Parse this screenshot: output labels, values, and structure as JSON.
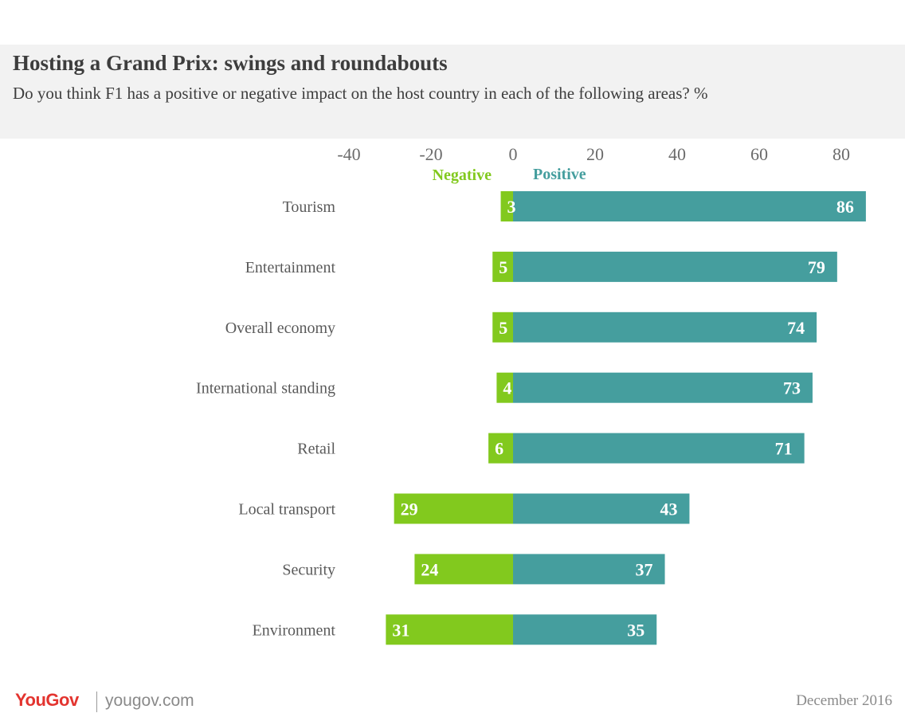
{
  "header": {
    "title": "Hosting a Grand Prix: swings and roundabouts",
    "subtitle": "Do you think F1 has a positive or negative impact on the host country in each of the following areas? %"
  },
  "chart_data": {
    "type": "bar",
    "orientation": "horizontal-diverging",
    "categories": [
      "Tourism",
      "Entertainment",
      "Overall economy",
      "International standing",
      "Retail",
      "Local transport",
      "Security",
      "Environment"
    ],
    "series": [
      {
        "name": "Negative",
        "values": [
          3,
          5,
          5,
          4,
          6,
          29,
          24,
          31
        ],
        "color": "#82c91e"
      },
      {
        "name": "Positive",
        "values": [
          86,
          79,
          74,
          73,
          71,
          43,
          37,
          35
        ],
        "color": "#459e9e"
      }
    ],
    "xticks": [
      "-40",
      "-20",
      "0",
      "20",
      "40",
      "60",
      "80"
    ],
    "xlim": [
      -40,
      86
    ],
    "legend_position": "top"
  },
  "footer": {
    "logo": "YouGov",
    "url": "yougov.com",
    "date": "December 2016"
  }
}
